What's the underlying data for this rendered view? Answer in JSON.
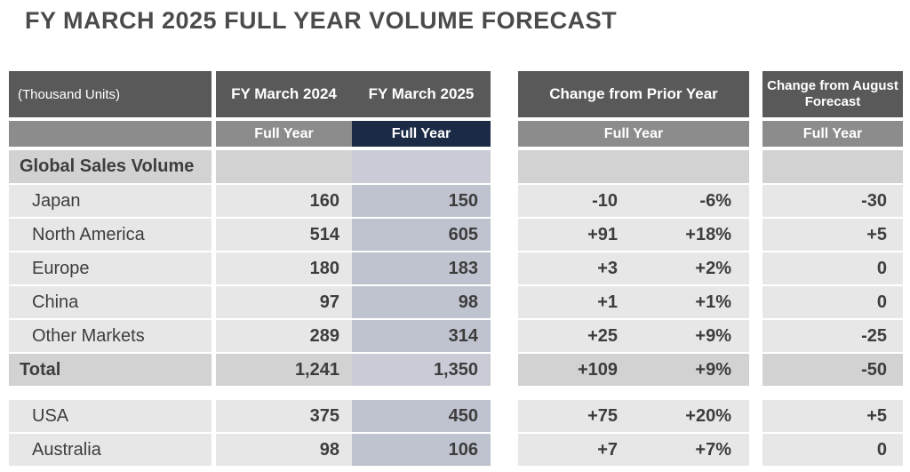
{
  "title": "FY MARCH 2025 FULL YEAR VOLUME FORECAST",
  "main_table": {
    "corner_label": "(Thousand Units)",
    "columns": [
      {
        "header": "FY March 2024",
        "subheader": "Full Year"
      },
      {
        "header": "FY March 2025",
        "subheader": "Full Year"
      }
    ]
  },
  "prior_year_table": {
    "header": "Change from Prior Year",
    "subheader": "Full Year"
  },
  "august_table": {
    "header": "Change from August Forecast",
    "subheader": "Full Year"
  },
  "rows": [
    {
      "label": "Global Sales Volume",
      "style": "section",
      "fy2024": "",
      "fy2025": "",
      "chg": "",
      "chg_pct": "",
      "chg_aug": ""
    },
    {
      "label": "Japan",
      "style": "data",
      "fy2024": "160",
      "fy2025": "150",
      "chg": "-10",
      "chg_pct": "-6%",
      "chg_aug": "-30"
    },
    {
      "label": "North America",
      "style": "data",
      "fy2024": "514",
      "fy2025": "605",
      "chg": "+91",
      "chg_pct": "+18%",
      "chg_aug": "+5"
    },
    {
      "label": "Europe",
      "style": "data",
      "fy2024": "180",
      "fy2025": "183",
      "chg": "+3",
      "chg_pct": "+2%",
      "chg_aug": "0"
    },
    {
      "label": "China",
      "style": "data",
      "fy2024": "97",
      "fy2025": "98",
      "chg": "+1",
      "chg_pct": "+1%",
      "chg_aug": "0"
    },
    {
      "label": "Other Markets",
      "style": "data",
      "fy2024": "289",
      "fy2025": "314",
      "chg": "+25",
      "chg_pct": "+9%",
      "chg_aug": "-25"
    },
    {
      "label": "Total",
      "style": "total",
      "fy2024": "1,241",
      "fy2025": "1,350",
      "chg": "+109",
      "chg_pct": "+9%",
      "chg_aug": "-50"
    },
    {
      "label": "USA",
      "style": "data",
      "fy2024": "375",
      "fy2025": "450",
      "chg": "+75",
      "chg_pct": "+20%",
      "chg_aug": "+5"
    },
    {
      "label": "Australia",
      "style": "data",
      "fy2024": "98",
      "fy2025": "106",
      "chg": "+7",
      "chg_pct": "+7%",
      "chg_aug": "0"
    }
  ],
  "colors": {
    "header_dark": "#595959",
    "subheader_gray": "#8c8c8c",
    "navy_accent": "#1b2a45",
    "row_light": "#e7e7e7",
    "row_section": "#d2d2d2",
    "fy2025_column": "#bfc3cf",
    "fy2025_section": "#c9ccd6",
    "text": "#3d3d3d"
  }
}
